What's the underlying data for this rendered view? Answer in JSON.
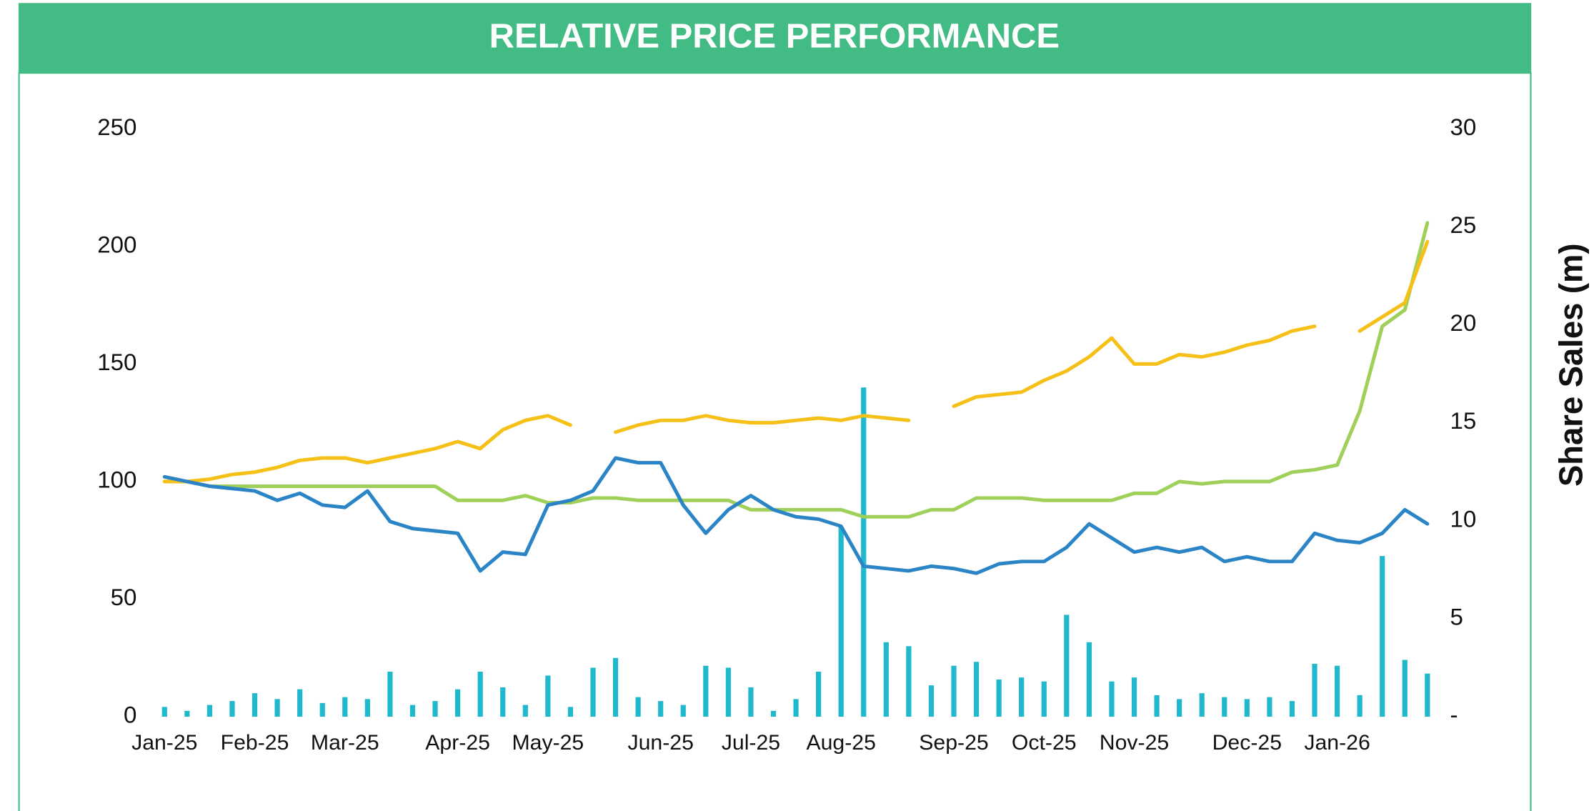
{
  "chart_data": {
    "type": "line",
    "title": "RELATIVE PRICE PERFORMANCE",
    "y2_label": "Share Sales (m)",
    "categories": [
      "Jan-25",
      null,
      null,
      null,
      "Feb-25",
      null,
      null,
      null,
      "Mar-25",
      null,
      null,
      null,
      null,
      "Apr-25",
      null,
      null,
      null,
      "May-25",
      null,
      null,
      null,
      null,
      "Jun-25",
      null,
      null,
      null,
      "Jul-25",
      null,
      null,
      null,
      "Aug-25",
      null,
      null,
      null,
      null,
      "Sep-25",
      null,
      null,
      null,
      "Oct-25",
      null,
      null,
      null,
      "Nov-25",
      null,
      null,
      null,
      null,
      "Dec-25",
      null,
      null,
      null,
      "Jan-26",
      null,
      null,
      null,
      null
    ],
    "series": [
      {
        "color": "#1fb8cc",
        "kind": "bar",
        "axis": "y2",
        "values": [
          0.5,
          0.3,
          0.6,
          0.8,
          1.2,
          0.9,
          1.4,
          0.7,
          1.0,
          0.9,
          2.3,
          0.6,
          0.8,
          1.4,
          2.3,
          1.5,
          0.6,
          2.1,
          0.5,
          2.5,
          3.0,
          1.0,
          0.8,
          0.6,
          2.6,
          2.5,
          1.5,
          0.3,
          0.9,
          2.3,
          9.7,
          16.8,
          3.8,
          3.6,
          1.6,
          2.6,
          2.8,
          1.9,
          2.0,
          1.8,
          5.2,
          3.8,
          1.8,
          2.0,
          1.1,
          0.9,
          1.2,
          1.0,
          0.9,
          1.0,
          0.8,
          2.7,
          2.6,
          1.1,
          8.2,
          2.9,
          2.2
        ]
      },
      {
        "color": "#9fd05a",
        "kind": "line",
        "values": [
          100,
          100,
          98,
          98,
          98,
          98,
          98,
          98,
          98,
          98,
          98,
          98,
          98,
          92,
          92,
          92,
          94,
          91,
          91,
          93,
          93,
          92,
          92,
          92,
          92,
          92,
          88,
          88,
          88,
          88,
          88,
          85,
          85,
          85,
          88,
          88,
          93,
          93,
          93,
          92,
          92,
          92,
          92,
          95,
          95,
          100,
          99,
          100,
          100,
          100,
          104,
          105,
          107,
          130,
          166,
          173,
          210
        ]
      },
      {
        "color": "#f5c017",
        "kind": "line",
        "values": [
          100,
          100,
          101,
          103,
          104,
          106,
          109,
          110,
          110,
          108,
          110,
          112,
          114,
          117,
          114,
          122,
          126,
          128,
          124,
          null,
          121,
          124,
          126,
          126,
          128,
          126,
          125,
          125,
          126,
          127,
          126,
          128,
          127,
          126,
          null,
          132,
          136,
          137,
          138,
          143,
          147,
          153,
          161,
          150,
          150,
          154,
          153,
          155,
          158,
          160,
          164,
          166,
          null,
          164,
          170,
          176,
          202
        ]
      },
      {
        "color": "#2a84c6",
        "kind": "line",
        "values": [
          102,
          100,
          98,
          97,
          96,
          92,
          95,
          90,
          89,
          96,
          83,
          80,
          79,
          78,
          62,
          70,
          69,
          90,
          92,
          96,
          110,
          108,
          108,
          90,
          78,
          88,
          94,
          88,
          85,
          84,
          81,
          64,
          63,
          62,
          64,
          63,
          61,
          65,
          66,
          66,
          72,
          82,
          76,
          70,
          72,
          70,
          72,
          66,
          68,
          66,
          66,
          78,
          75,
          74,
          78,
          88,
          82
        ]
      }
    ],
    "ylim": [
      0,
      250
    ],
    "yticks": [
      0,
      50,
      100,
      150,
      200,
      250
    ],
    "y2lim": [
      0,
      30
    ],
    "y2ticks": [
      {
        "value": 0,
        "label": "-"
      },
      5,
      10,
      15,
      20,
      25,
      30
    ]
  }
}
